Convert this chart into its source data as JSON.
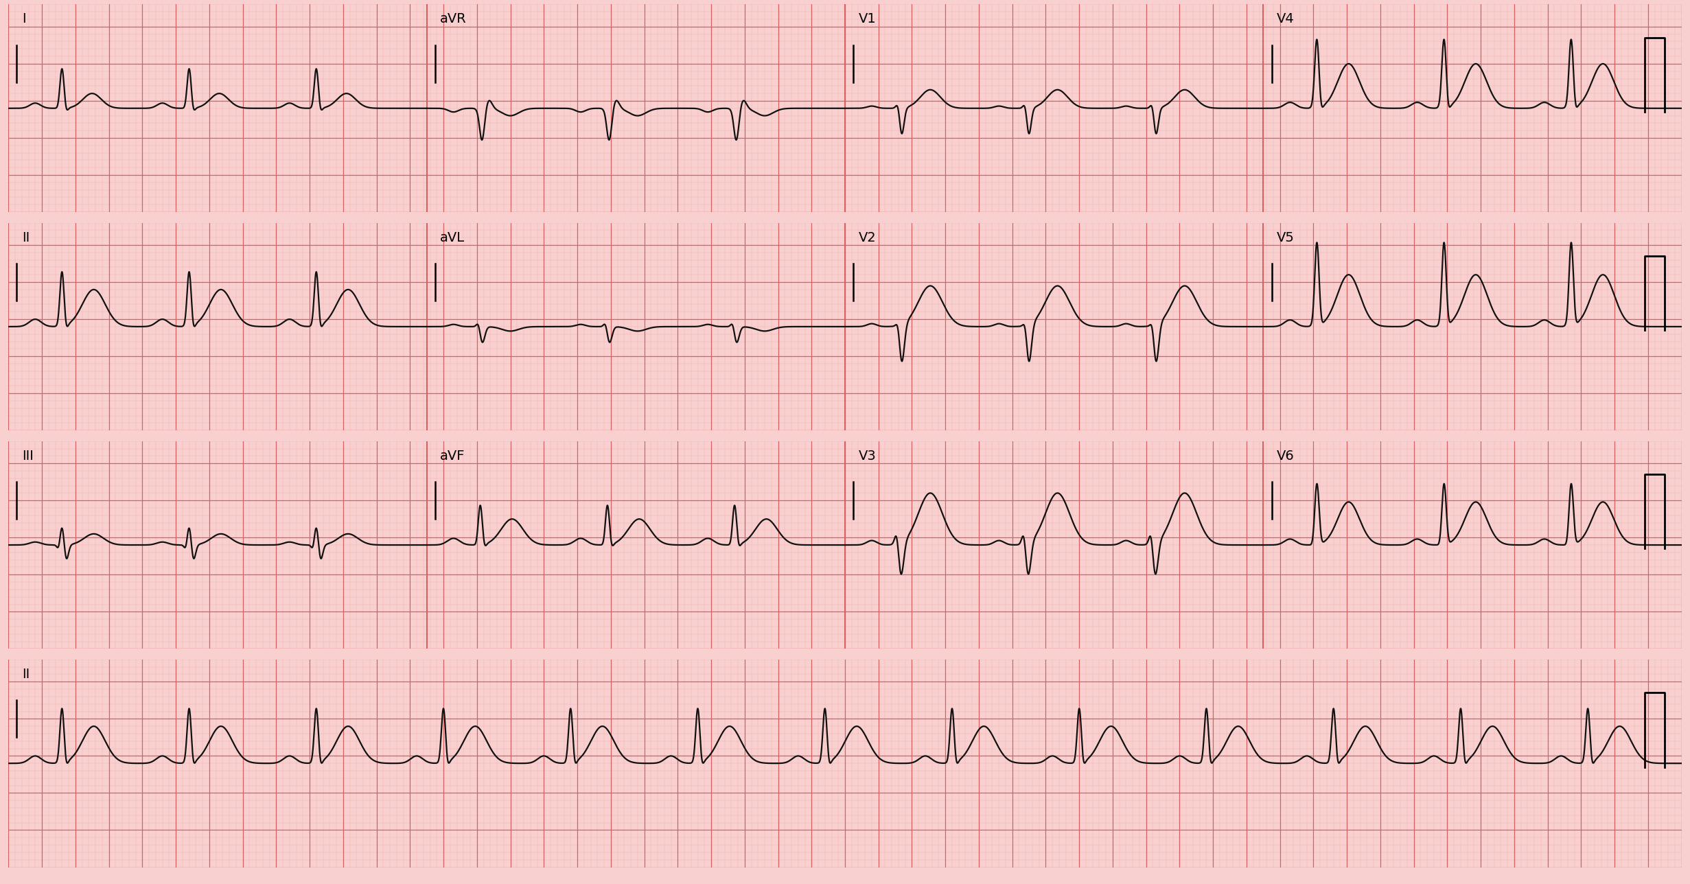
{
  "bg_color": "#f9d0d0",
  "grid_minor_color": "#f0a8a8",
  "grid_major_color": "#d96060",
  "ecg_color": "#111111",
  "line_width": 1.6,
  "figsize": [
    24.62,
    12.88
  ],
  "dpi": 100,
  "n_rows": 4,
  "row_labels": [
    [
      "I",
      "aVR",
      "V1",
      "V4"
    ],
    [
      "II",
      "aVL",
      "V2",
      "V5"
    ],
    [
      "III",
      "aVF",
      "V3",
      "V6"
    ],
    [
      "II"
    ]
  ],
  "label_fontsize": 14,
  "minor_mm": 0.04,
  "major_mm": 0.2,
  "seg_duration": 2.5,
  "rhythm_duration": 10.0,
  "rr_interval": 0.76,
  "sample_rate": 1000
}
